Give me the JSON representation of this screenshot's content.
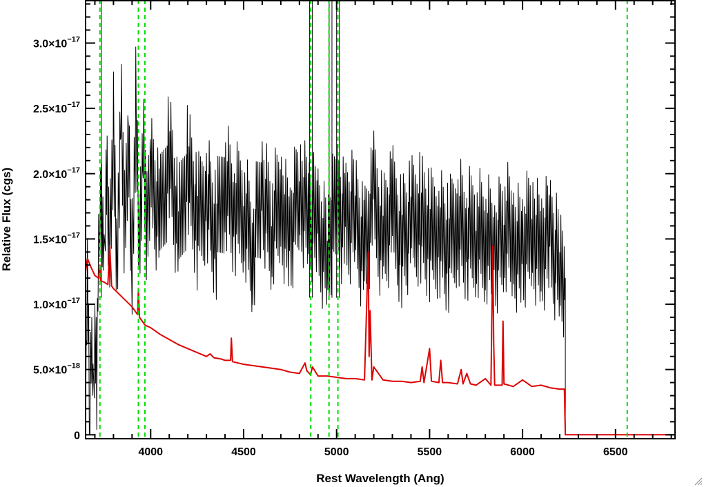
{
  "chart_data": {
    "type": "line",
    "xlabel": "Rest Wavelength (Ang)",
    "ylabel": "Relative Flux (cgs)",
    "xlim": [
      3650,
      6820
    ],
    "ylim": [
      -3e-19,
      3.33e-17
    ],
    "x_ticks": [
      {
        "value": 4000,
        "label": "4000"
      },
      {
        "value": 4500,
        "label": "4500"
      },
      {
        "value": 5000,
        "label": "5000"
      },
      {
        "value": 5500,
        "label": "5500"
      },
      {
        "value": 6000,
        "label": "6000"
      },
      {
        "value": 6500,
        "label": "6500"
      }
    ],
    "y_ticks": [
      {
        "value": 0,
        "mant": "0",
        "exp": ""
      },
      {
        "value": 5e-18,
        "mant": "5.0×10",
        "exp": "−18"
      },
      {
        "value": 1e-17,
        "mant": "1.0×10",
        "exp": "−17"
      },
      {
        "value": 1.5e-17,
        "mant": "1.5×10",
        "exp": "−17"
      },
      {
        "value": 2e-17,
        "mant": "2.0×10",
        "exp": "−17"
      },
      {
        "value": 2.5e-17,
        "mant": "2.5×10",
        "exp": "−17"
      },
      {
        "value": 3e-17,
        "mant": "3.0×10",
        "exp": "−17"
      }
    ],
    "series": [
      {
        "color": "#000000",
        "description": "observed spectrum (noisy)",
        "x": [
          3650,
          3660,
          3670,
          3680,
          3690,
          3700,
          3710,
          3720,
          3730,
          3740,
          3750,
          3760,
          3780,
          3800,
          3820,
          3840,
          3860,
          3880,
          3900,
          3920,
          3940,
          3960,
          3980,
          4000,
          4050,
          4100,
          4150,
          4200,
          4250,
          4300,
          4350,
          4400,
          4450,
          4500,
          4550,
          4600,
          4650,
          4700,
          4750,
          4800,
          4850,
          4900,
          4950,
          5000,
          5050,
          5100,
          5150,
          5200,
          5250,
          5300,
          5350,
          5400,
          5450,
          5500,
          5550,
          5600,
          5650,
          5700,
          5750,
          5800,
          5850,
          5900,
          5950,
          6000,
          6050,
          6100,
          6150,
          6200,
          6230
        ],
        "y": [
          2e-18,
          1.3e-17,
          1e-18,
          9e-18,
          3e-18,
          1.1e-17,
          5e-18,
          1.4e-17,
          2.1e-17,
          1.7e-17,
          1.2e-17,
          2.2e-17,
          1.5e-17,
          2.4e-17,
          1.3e-17,
          2.6e-17,
          1.6e-17,
          2.3e-17,
          1.2e-17,
          2.5e-17,
          1.4e-17,
          2.2e-17,
          1.5e-17,
          2e-17,
          1.6e-17,
          2.2e-17,
          1.5e-17,
          2.1e-17,
          1.6e-17,
          1.9e-17,
          1.5e-17,
          2e-17,
          1.7e-17,
          1.8e-17,
          1.4e-17,
          1.9e-17,
          1.6e-17,
          1.8e-17,
          1.5e-17,
          1.9e-17,
          1.7e-17,
          1.6e-17,
          1.4e-17,
          1.8e-17,
          1.6e-17,
          1.7e-17,
          1.4e-17,
          1.8e-17,
          1.5e-17,
          1.7e-17,
          1.5e-17,
          1.6e-17,
          1.7e-17,
          1.5e-17,
          1.6e-17,
          1.4e-17,
          1.7e-17,
          1.5e-17,
          1.6e-17,
          1.5e-17,
          1.4e-17,
          1.6e-17,
          1.5e-17,
          1.4e-17,
          1.6e-17,
          1.4e-17,
          1.5e-17,
          1.3e-17,
          1.2e-17
        ]
      },
      {
        "color": "#dd0000",
        "description": "model / template fit",
        "x": [
          3650,
          3660,
          3680,
          3700,
          3720,
          3727,
          3730,
          3750,
          3770,
          3780,
          3790,
          3800,
          3850,
          3900,
          3930,
          3934,
          3940,
          3960,
          3970,
          4000,
          4050,
          4100,
          4150,
          4200,
          4250,
          4300,
          4320,
          4340,
          4380,
          4400,
          4430,
          4434,
          4440,
          4500,
          4550,
          4600,
          4650,
          4700,
          4750,
          4800,
          4830,
          4840,
          4860,
          4870,
          4900,
          4950,
          5000,
          5050,
          5100,
          5150,
          5170,
          5175,
          5180,
          5190,
          5200,
          5250,
          5300,
          5350,
          5400,
          5450,
          5460,
          5470,
          5500,
          5510,
          5550,
          5560,
          5570,
          5600,
          5650,
          5670,
          5680,
          5700,
          5720,
          5750,
          5800,
          5830,
          5840,
          5845,
          5850,
          5890,
          5895,
          5900,
          5950,
          6000,
          6050,
          6100,
          6150,
          6200,
          6225,
          6230,
          6240,
          6300,
          6400,
          6500,
          6600,
          6700,
          6820
        ],
        "y": [
          1.25e-17,
          1.35e-17,
          1.28e-17,
          1.22e-17,
          1.2e-17,
          1.3e-17,
          1.18e-17,
          1.17e-17,
          1.15e-17,
          1.45e-17,
          1.14e-17,
          1.12e-17,
          1.05e-17,
          9.8e-18,
          9.2e-18,
          1.12e-17,
          9e-18,
          8.6e-18,
          8.4e-18,
          8.2e-18,
          7.7e-18,
          7.3e-18,
          6.9e-18,
          6.6e-18,
          6.3e-18,
          6e-18,
          6.2e-18,
          5.9e-18,
          5.8e-18,
          5.7e-18,
          5.7e-18,
          7.4e-18,
          5.6e-18,
          5.4e-18,
          5.3e-18,
          5.2e-18,
          5.1e-18,
          5e-18,
          4.8e-18,
          4.7e-18,
          5.5e-18,
          4.9e-18,
          4.6e-18,
          5.2e-18,
          4.5e-18,
          4.5e-18,
          4.4e-18,
          4.3e-18,
          4.3e-18,
          4.2e-18,
          1.4e-17,
          6e-18,
          9.5e-18,
          4.2e-18,
          5.2e-18,
          4.2e-18,
          4.1e-18,
          4.1e-18,
          4e-18,
          4.1e-18,
          5.2e-18,
          4e-18,
          6.6e-18,
          4.1e-18,
          4e-18,
          5.7e-18,
          4e-18,
          4e-18,
          3.9e-18,
          5e-18,
          3.9e-18,
          4.7e-18,
          3.9e-18,
          3.8e-18,
          4.3e-18,
          3.8e-18,
          1.45e-17,
          7e-18,
          3.8e-18,
          3.8e-18,
          8.7e-18,
          3.9e-18,
          3.7e-18,
          4.2e-18,
          3.7e-18,
          3.8e-18,
          3.6e-18,
          3.5e-18,
          3.5e-18,
          0.0,
          0.0,
          0.0,
          0.0,
          0.0,
          0.0,
          0.0,
          0.0
        ]
      }
    ],
    "vertical_green_lines": [
      3727,
      3934,
      3969,
      4861,
      4959,
      5007,
      6563
    ],
    "vertical_black_lines": [
      3735,
      4855,
      4870,
      4960,
      4975,
      5000,
      5015
    ],
    "colors": {
      "green": "#00dd00",
      "red": "#dd0000",
      "black": "#000000"
    }
  }
}
